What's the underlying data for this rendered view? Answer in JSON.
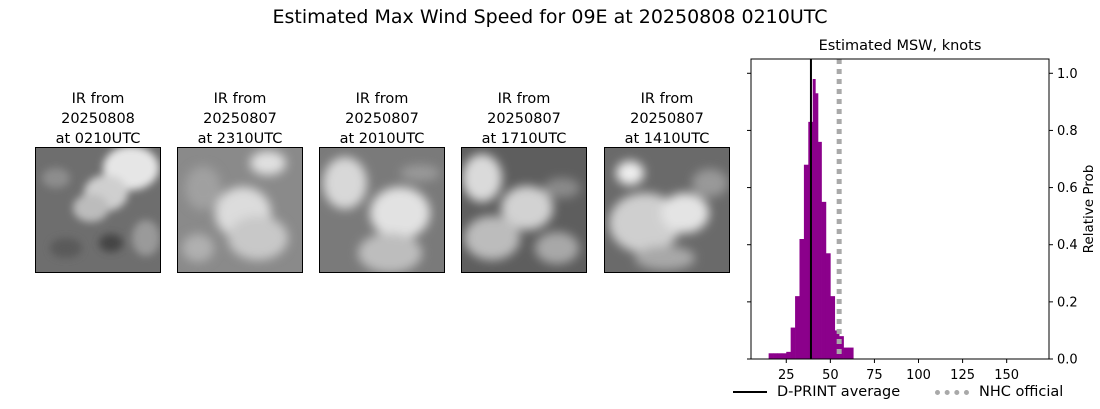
{
  "title": "Estimated Max Wind Speed for 09E at 20250808 0210UTC",
  "panels": [
    {
      "caption": [
        "IR from",
        "20250808",
        "at 0210UTC"
      ]
    },
    {
      "caption": [
        "IR from",
        "20250807",
        "at 2310UTC"
      ]
    },
    {
      "caption": [
        "IR from",
        "20250807",
        "at 2010UTC"
      ]
    },
    {
      "caption": [
        "IR from",
        "20250807",
        "at 1710UTC"
      ]
    },
    {
      "caption": [
        "IR from",
        "20250807",
        "at 1410UTC"
      ]
    }
  ],
  "chart_data": {
    "type": "bar",
    "title": "Estimated MSW, knots",
    "xlabel": "",
    "ylabel": "Relative Prob",
    "xlim": [
      5,
      174
    ],
    "ylim": [
      0,
      1.05
    ],
    "xticks": [
      25,
      50,
      75,
      100,
      125,
      150
    ],
    "yticks": [
      0.0,
      0.2,
      0.4,
      0.6,
      0.8,
      1.0
    ],
    "yaxis_side": "right",
    "bar_color": "#8b008b",
    "bins": [
      {
        "x0": 15,
        "x1": 17.5,
        "value": 0.02
      },
      {
        "x0": 17.5,
        "x1": 20,
        "value": 0.02
      },
      {
        "x0": 20,
        "x1": 22.5,
        "value": 0.02
      },
      {
        "x0": 22.5,
        "x1": 25,
        "value": 0.02
      },
      {
        "x0": 25,
        "x1": 27.5,
        "value": 0.025
      },
      {
        "x0": 27.5,
        "x1": 30,
        "value": 0.11
      },
      {
        "x0": 30,
        "x1": 32.5,
        "value": 0.22
      },
      {
        "x0": 32.5,
        "x1": 35,
        "value": 0.42
      },
      {
        "x0": 35,
        "x1": 37.5,
        "value": 0.68
      },
      {
        "x0": 37.5,
        "x1": 40,
        "value": 0.83
      },
      {
        "x0": 40,
        "x1": 41.5,
        "value": 0.98
      },
      {
        "x0": 41.5,
        "x1": 43,
        "value": 0.93
      },
      {
        "x0": 43,
        "x1": 45,
        "value": 0.76
      },
      {
        "x0": 45,
        "x1": 47.5,
        "value": 0.55
      },
      {
        "x0": 47.5,
        "x1": 50,
        "value": 0.37
      },
      {
        "x0": 50,
        "x1": 52.5,
        "value": 0.22
      },
      {
        "x0": 52.5,
        "x1": 55,
        "value": 0.1
      },
      {
        "x0": 55,
        "x1": 57.5,
        "value": 0.08
      },
      {
        "x0": 57.5,
        "x1": 60,
        "value": 0.04
      },
      {
        "x0": 60,
        "x1": 63,
        "value": 0.04
      }
    ],
    "vlines": [
      {
        "name": "D-PRINT average",
        "x": 39,
        "color": "#000000",
        "style": "solid"
      },
      {
        "name": "NHC official",
        "x": 55,
        "color": "#a9a9a9",
        "style": "dotted"
      }
    ],
    "legend": {
      "placement": "bottom",
      "entries": [
        "D-PRINT average",
        "NHC official"
      ]
    }
  }
}
